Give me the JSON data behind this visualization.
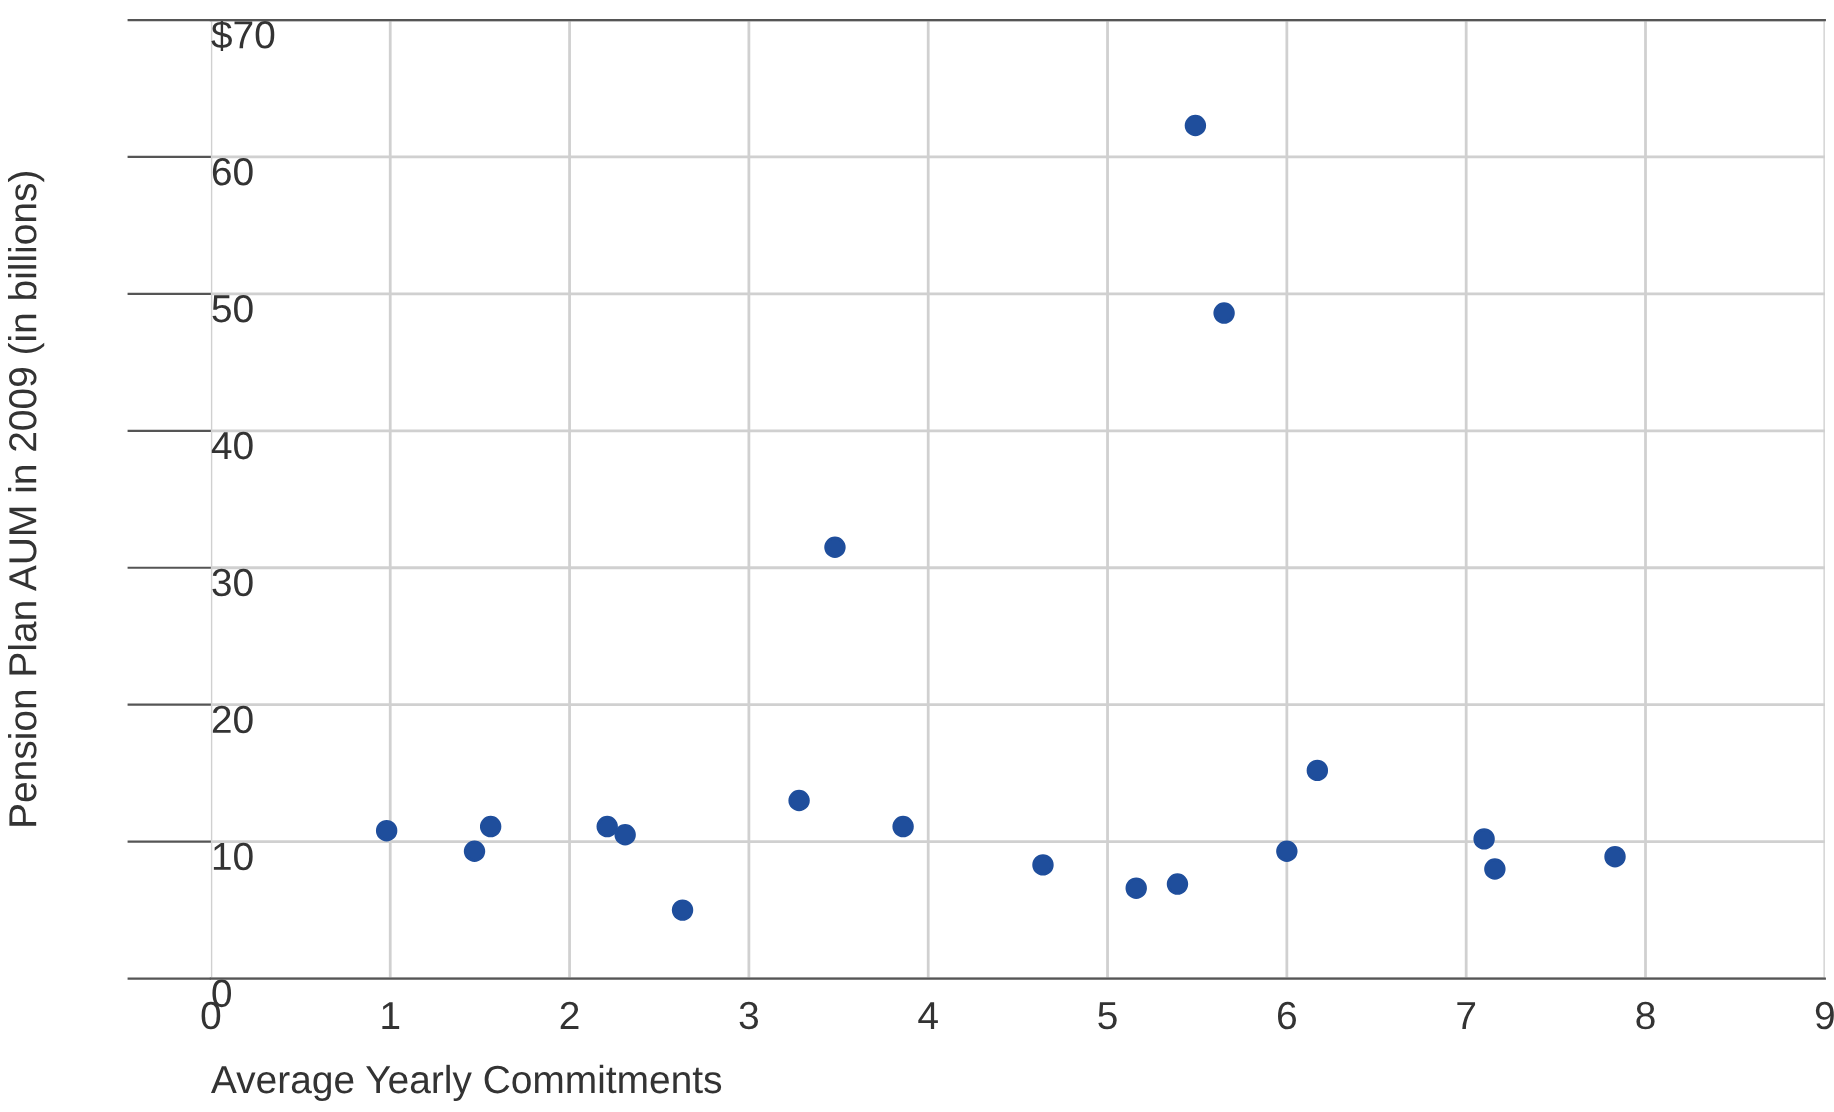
{
  "chart_data": {
    "type": "scatter",
    "xlabel": "Average Yearly Commitments",
    "ylabel": "Pension Plan AUM in 2009 (in billions)",
    "series": [
      {
        "color": "#1f4e9c",
        "x": [
          0.98,
          1.47,
          1.56,
          2.21,
          2.31,
          2.63,
          3.28,
          3.48,
          3.86,
          4.64,
          5.16,
          5.39,
          5.49,
          5.65,
          6.0,
          6.17,
          7.1,
          7.16,
          7.83
        ],
        "values": [
          10.8,
          9.3,
          11.1,
          11.1,
          10.5,
          5.0,
          13.0,
          31.5,
          11.1,
          8.3,
          6.6,
          6.9,
          62.3,
          48.6,
          9.3,
          15.2,
          10.2,
          8.0,
          8.9
        ]
      }
    ],
    "xlim": [
      0,
      9
    ],
    "xticks": [
      0,
      1,
      2,
      3,
      4,
      5,
      6,
      7,
      8,
      9
    ],
    "ylim": [
      0,
      70
    ],
    "yticks": [
      0,
      10,
      20,
      30,
      40,
      50,
      60,
      {
        "value": 70,
        "label": "$70"
      }
    ],
    "grid": true,
    "marker": "circle"
  }
}
